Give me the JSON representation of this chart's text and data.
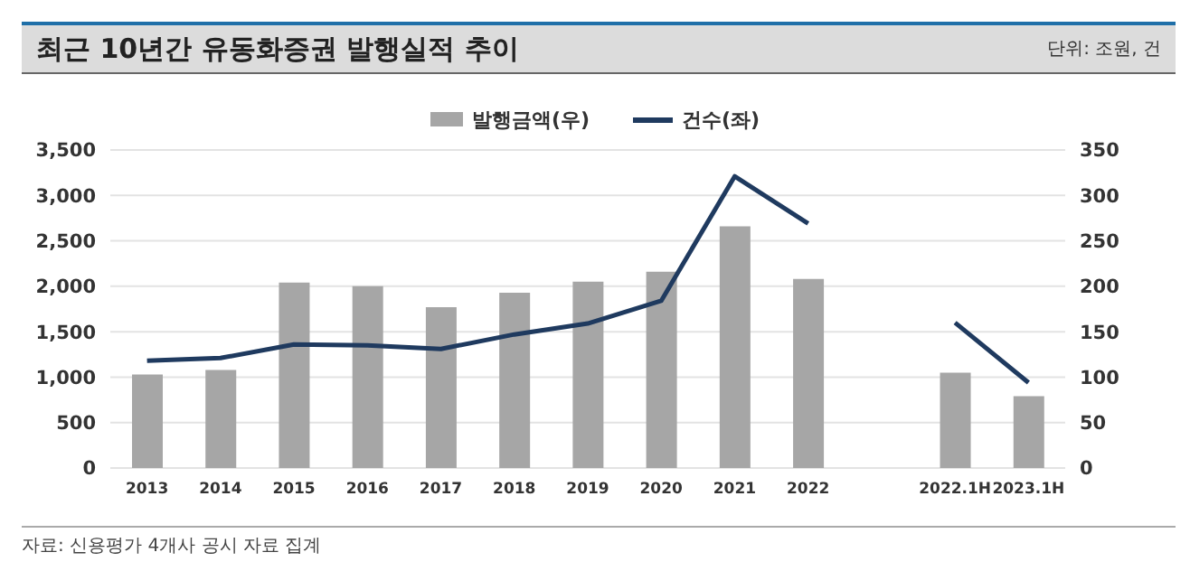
{
  "chart_data": {
    "type": "bar",
    "title": "최근 10년간 유동화증권 발행실적 추이",
    "subtitle": "단위: 조원, 건",
    "annotations": [
      "자료: 신용평가 4개사 공시 자료 집계"
    ],
    "categories": [
      "2013",
      "2014",
      "2015",
      "2016",
      "2017",
      "2018",
      "2019",
      "2020",
      "2021",
      "2022",
      null,
      "2022.1H",
      "2023.1H"
    ],
    "series": [
      {
        "name": "발행금액(우)",
        "axis": "y2",
        "color": "#a6a6a6",
        "values": [
          103,
          108,
          204,
          200,
          177,
          193,
          205,
          216,
          266,
          208,
          null,
          105,
          79
        ]
      },
      {
        "name": "건수(좌)",
        "type": "line",
        "color": "#1f3a5f",
        "values": [
          1180,
          1210,
          1360,
          1350,
          1310,
          1470,
          1590,
          1840,
          3210,
          2690,
          null,
          1600,
          940
        ]
      }
    ],
    "ylim": [
      0,
      3500
    ],
    "yticks": [
      0,
      500,
      {
        "value": 1000,
        "label": "1,000"
      },
      {
        "value": 1500,
        "label": "1,500"
      },
      {
        "value": 2000,
        "label": "2,000"
      },
      {
        "value": 2500,
        "label": "2,500"
      },
      {
        "value": 3000,
        "label": "3,000"
      },
      {
        "value": 3500,
        "label": "3,500"
      }
    ],
    "y2lim": [
      0,
      350
    ],
    "y2ticks": [
      0,
      50,
      100,
      150,
      200,
      250,
      300,
      350
    ],
    "grid": "y",
    "legend": "top",
    "marker": "none"
  }
}
